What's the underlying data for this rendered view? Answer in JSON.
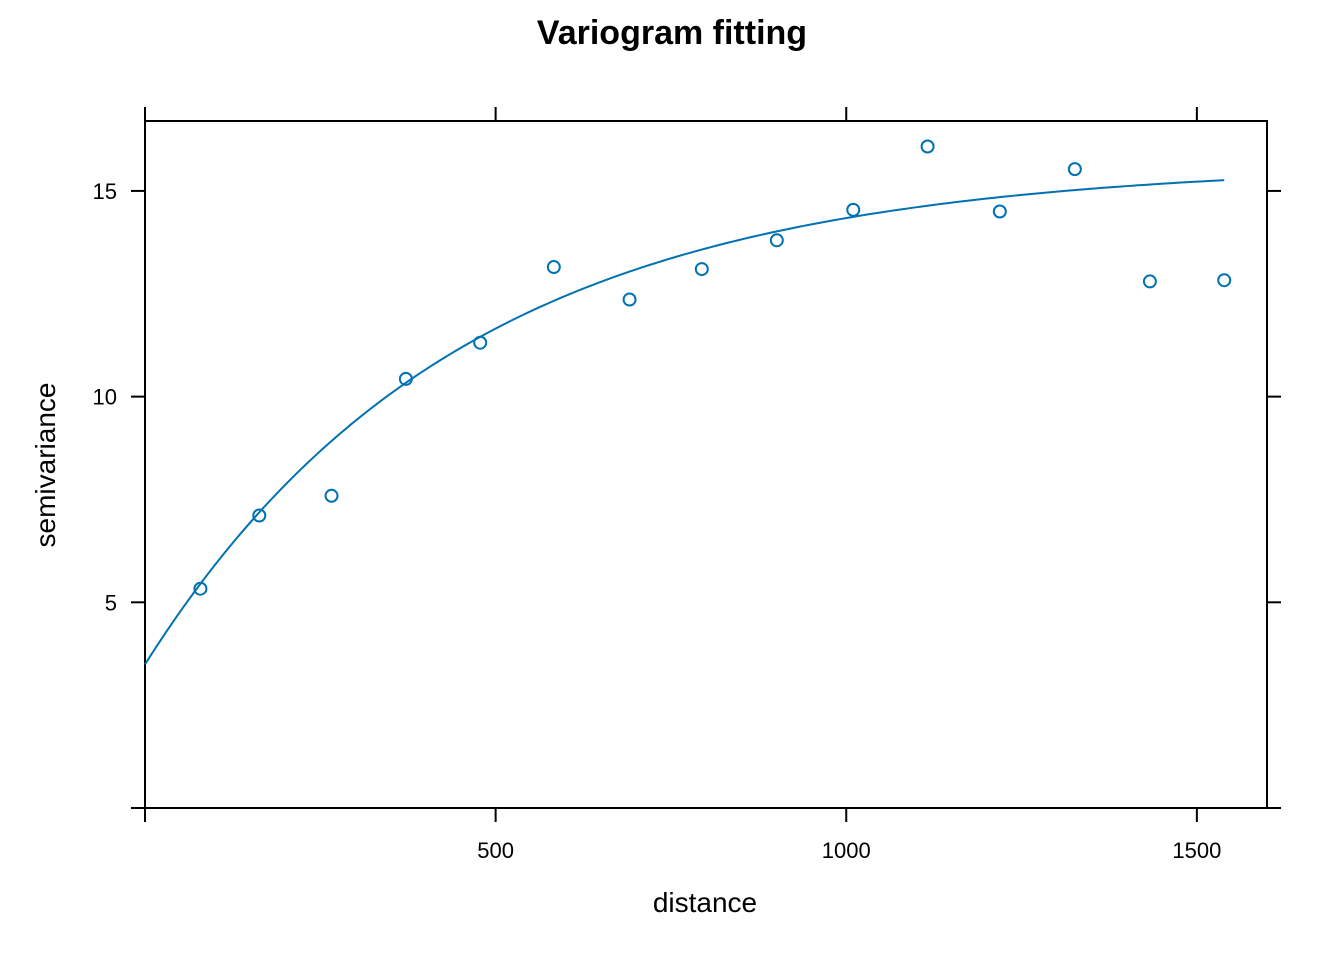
{
  "chart_data": {
    "type": "scatter",
    "title": "Variogram fitting",
    "xlabel": "distance",
    "ylabel": "semivariance",
    "xlim": [
      0,
      1600
    ],
    "ylim": [
      0,
      16.7
    ],
    "x_ticks": [
      500,
      1000,
      1500
    ],
    "y_ticks": [
      5,
      10,
      15
    ],
    "x_tick_labels": [
      "500",
      "1000",
      "1500"
    ],
    "y_tick_labels": [
      "5",
      "10",
      "15"
    ],
    "grid": false,
    "series_color": "#0072B2",
    "points": {
      "x": [
        79,
        163,
        266,
        372,
        478,
        583,
        691,
        794,
        901,
        1010,
        1116,
        1219,
        1326,
        1433,
        1539
      ],
      "y": [
        5.33,
        7.11,
        7.59,
        10.43,
        11.31,
        13.15,
        12.36,
        13.1,
        13.8,
        14.54,
        16.08,
        14.5,
        15.53,
        12.8,
        12.83
      ]
    },
    "fitted_model": {
      "type": "exponential",
      "nugget": 3.49,
      "psill": 12.17,
      "range": 450,
      "x_start": 0,
      "x_end": 1539
    }
  }
}
